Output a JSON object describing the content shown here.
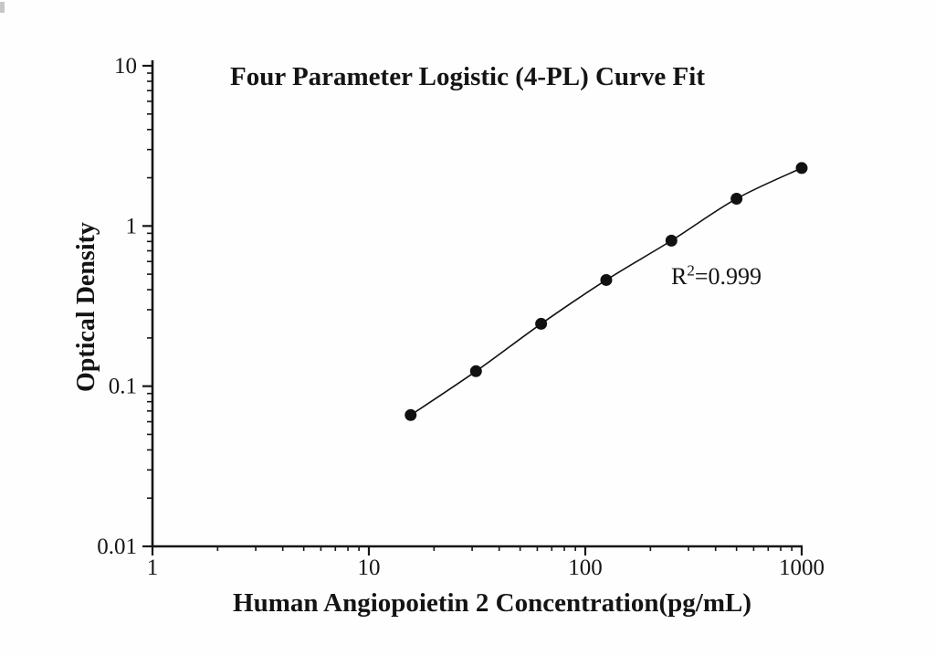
{
  "chart_data": {
    "type": "scatter",
    "title": "Four Parameter Logistic (4-PL) Curve Fit",
    "xlabel": "Human Angiopoietin 2 Concentration(pg/mL)",
    "ylabel": "Optical Density",
    "annotation": {
      "base": "R",
      "superscript": "2",
      "rest": "=0.999"
    },
    "x_scale": "log",
    "y_scale": "log",
    "xlim": [
      1,
      1000
    ],
    "ylim": [
      0.01,
      10
    ],
    "x_ticks": [
      {
        "value": 1,
        "label": "1"
      },
      {
        "value": 10,
        "label": "10"
      },
      {
        "value": 100,
        "label": "100"
      },
      {
        "value": 1000,
        "label": "1000"
      }
    ],
    "y_ticks": [
      {
        "value": 10,
        "label": "10"
      },
      {
        "value": 1,
        "label": "1"
      },
      {
        "value": 0.1,
        "label": "0.1"
      },
      {
        "value": 0.01,
        "label": "0.01"
      }
    ],
    "grid": false,
    "legend": "none",
    "series": [
      {
        "name": "standard-curve",
        "marker": "filled-circle",
        "line": "4pl-fit",
        "color": "#111111",
        "x": [
          15.6,
          31.25,
          62.5,
          125,
          250,
          500,
          1000
        ],
        "y": [
          0.066,
          0.124,
          0.245,
          0.46,
          0.81,
          1.48,
          2.3
        ]
      }
    ]
  }
}
